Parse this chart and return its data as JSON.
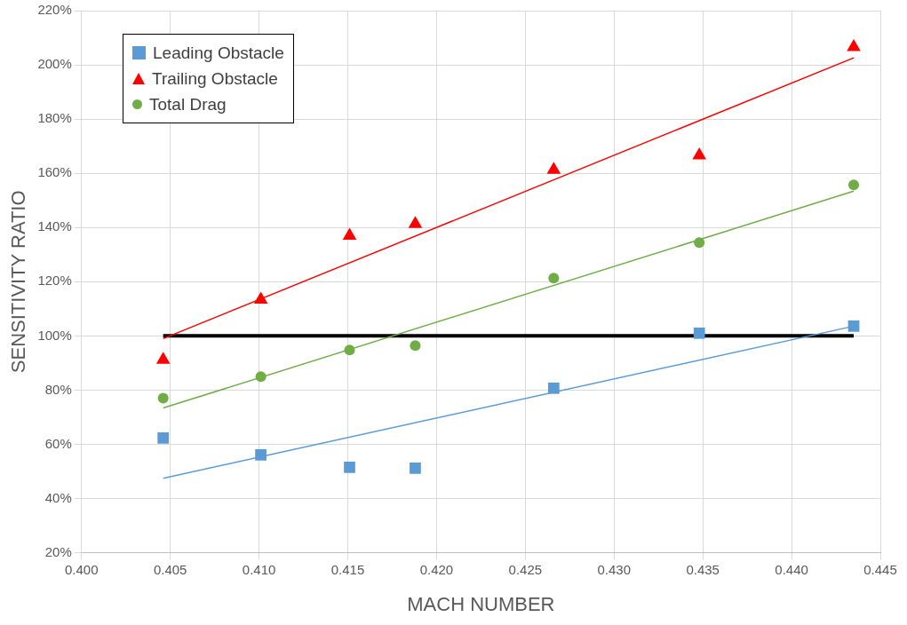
{
  "chart_data": {
    "type": "scatter",
    "xlabel": "MACH NUMBER",
    "ylabel": "SENSITIVITY RATIO",
    "xlim": [
      0.4,
      0.445
    ],
    "xticks": [
      {
        "value": 0.4,
        "label": "0.400"
      },
      {
        "value": 0.405,
        "label": "0.405"
      },
      {
        "value": 0.41,
        "label": "0.410"
      },
      {
        "value": 0.415,
        "label": "0.415"
      },
      {
        "value": 0.42,
        "label": "0.420"
      },
      {
        "value": 0.425,
        "label": "0.425"
      },
      {
        "value": 0.43,
        "label": "0.430"
      },
      {
        "value": 0.435,
        "label": "0.435"
      },
      {
        "value": 0.44,
        "label": "0.440"
      },
      {
        "value": 0.445,
        "label": "0.445"
      }
    ],
    "ylim": [
      20,
      220
    ],
    "yticks": [
      {
        "value": 20,
        "label": "20%"
      },
      {
        "value": 40,
        "label": "40%"
      },
      {
        "value": 60,
        "label": "60%"
      },
      {
        "value": 80,
        "label": "80%"
      },
      {
        "value": 100,
        "label": "100%"
      },
      {
        "value": 120,
        "label": "120%"
      },
      {
        "value": 140,
        "label": "140%"
      },
      {
        "value": 160,
        "label": "160%"
      },
      {
        "value": 180,
        "label": "180%"
      },
      {
        "value": 200,
        "label": "200%"
      },
      {
        "value": 220,
        "label": "220%"
      }
    ],
    "x": [
      0.4046,
      0.4101,
      0.4151,
      0.4188,
      0.4266,
      0.4348,
      0.4435
    ],
    "grid": true,
    "legend": "top left",
    "series": [
      {
        "name": "Leading Obstacle",
        "color": "#5b9bd5",
        "marker": "square",
        "values": [
          62.3,
          56.1,
          51.5,
          51.2,
          80.7,
          101,
          103.6
        ]
      },
      {
        "name": "Trailing Obstacle",
        "color": "#ff0000",
        "marker": "triangle",
        "values": [
          91.2,
          113.4,
          137,
          141.3,
          161.3,
          166.6,
          206.6
        ]
      },
      {
        "name": "Total Drag",
        "color": "#70ad47",
        "marker": "circle",
        "values": [
          77,
          85,
          94.8,
          96.4,
          121.3,
          134.4,
          155.7
        ]
      },
      {
        "type": "line",
        "color": "#5b9bd5",
        "marker": "none",
        "values": [
          47.5,
          null,
          null,
          null,
          null,
          null,
          103.6
        ]
      },
      {
        "type": "line",
        "color": "#ff0000",
        "marker": "none",
        "values": [
          99,
          null,
          null,
          null,
          null,
          null,
          202.6
        ]
      },
      {
        "type": "line",
        "color": "#70ad47",
        "marker": "none",
        "values": [
          73.4,
          null,
          null,
          null,
          null,
          null,
          153.4
        ]
      },
      {
        "type": "line",
        "color": "#000000",
        "marker": "none",
        "values": [
          100,
          null,
          null,
          null,
          null,
          null,
          100
        ]
      }
    ]
  }
}
